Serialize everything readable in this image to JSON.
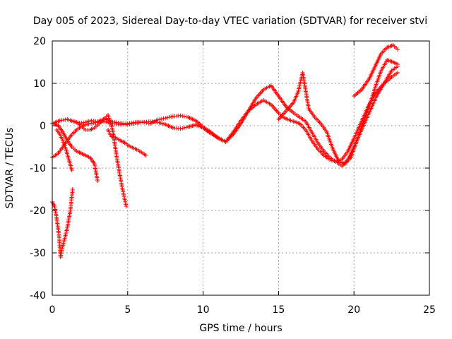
{
  "chart_data": {
    "type": "scatter",
    "title": "Day 005 of 2023, Sidereal Day-to-day VTEC variation (SDTVAR) for receiver stvi",
    "xlabel": "GPS time / hours",
    "ylabel": "SDTVAR / TECUs",
    "xlim": [
      0,
      25
    ],
    "ylim": [
      -40,
      20
    ],
    "x_ticks": [
      "0",
      "5",
      "10",
      "15",
      "20",
      "25"
    ],
    "y_ticks": [
      "20",
      "10",
      "0",
      "-10",
      "-20",
      "-30",
      "-40"
    ],
    "grid": true,
    "marker": "+",
    "color": "#ff0000",
    "series": [
      {
        "x": [
          0.0,
          0.15,
          0.3,
          0.45,
          0.55,
          0.65,
          0.8,
          1.0,
          1.2,
          1.35
        ],
        "y": [
          -18,
          -19,
          -22,
          -26,
          -31,
          -29,
          -27,
          -24,
          -20,
          -15
        ]
      },
      {
        "x": [
          0.0,
          0.5,
          1.0,
          1.4,
          1.8,
          2.2,
          2.6,
          3.0,
          3.5,
          4.0,
          4.5,
          5.0,
          5.5,
          6.0,
          6.5,
          7.0,
          7.5,
          8.0,
          8.5,
          9.0,
          9.5,
          10.0,
          10.5,
          11.0,
          11.5,
          12.0,
          12.5,
          13.0,
          13.5,
          14.0,
          14.5,
          15.0,
          15.3,
          15.6,
          16.0,
          16.4,
          16.8,
          17.2,
          17.6,
          18.0,
          18.4,
          18.8,
          19.2,
          19.6,
          20.0,
          20.5,
          21.0,
          21.5,
          22.0,
          22.5,
          22.9
        ],
        "y": [
          0.5,
          1.2,
          1.5,
          1.0,
          0.6,
          0.8,
          1.2,
          1.0,
          1.6,
          0.9,
          0.6,
          0.5,
          0.8,
          0.9,
          0.5,
          1.4,
          1.8,
          2.2,
          2.4,
          2.0,
          1.2,
          -0.3,
          -1.5,
          -3.0,
          -3.8,
          -1.5,
          1.2,
          3.5,
          5.0,
          6.0,
          5.0,
          3.0,
          2.0,
          1.5,
          1.0,
          0.5,
          -1.0,
          -3.5,
          -5.5,
          -7.0,
          -8.0,
          -8.5,
          -8.0,
          -6.0,
          -3.0,
          1.0,
          5.0,
          8.0,
          10.0,
          11.5,
          12.5
        ]
      },
      {
        "x": [
          0.0,
          0.4,
          0.8,
          1.2,
          1.6,
          2.0,
          2.5,
          3.0,
          3.5,
          4.0,
          4.5,
          5.0,
          5.5,
          6.0,
          6.5,
          7.0,
          7.5,
          8.0,
          8.5,
          9.0,
          9.5,
          10.0,
          10.5,
          11.0,
          11.5,
          12.0,
          12.5,
          13.0,
          13.5,
          14.0,
          14.5,
          15.0,
          15.5,
          16.0,
          16.4,
          16.8,
          17.2,
          17.6,
          18.0,
          18.4,
          18.8,
          19.2,
          19.6,
          20.0,
          20.5,
          21.0,
          21.5,
          22.0,
          22.5,
          22.9
        ],
        "y": [
          -7.5,
          -6.5,
          -4.5,
          -2.5,
          -1.0,
          0.0,
          0.5,
          0.8,
          1.0,
          0.5,
          0.3,
          0.3,
          0.6,
          0.8,
          1.0,
          0.8,
          0.3,
          -0.5,
          -0.7,
          -0.3,
          0.2,
          -0.5,
          -1.8,
          -2.8,
          -3.8,
          -2.0,
          0.5,
          3.5,
          6.5,
          8.5,
          9.5,
          7.0,
          4.5,
          3.0,
          2.0,
          1.0,
          -1.5,
          -4.0,
          -6.0,
          -7.5,
          -8.5,
          -9.5,
          -8.0,
          -5.0,
          -1.0,
          3.0,
          7.0,
          10.0,
          13.0,
          14.0
        ]
      },
      {
        "x": [
          15.0,
          15.5,
          16.0,
          16.3,
          16.6,
          17.0,
          17.4,
          17.8,
          18.2,
          18.6,
          19.0,
          19.4,
          19.8,
          20.2,
          20.6,
          21.0,
          21.4,
          21.8,
          22.2,
          22.6,
          22.9
        ],
        "y": [
          1.5,
          3.5,
          5.5,
          8.0,
          12.5,
          4.0,
          2.0,
          0.5,
          -1.5,
          -5.5,
          -8.5,
          -9.0,
          -7.5,
          -3.5,
          0.5,
          4.5,
          9.0,
          13.0,
          15.5,
          15.0,
          14.5
        ]
      },
      {
        "x": [
          20.0,
          20.5,
          21.0,
          21.4,
          21.8,
          22.2,
          22.6,
          22.9
        ],
        "y": [
          7.0,
          8.5,
          11.0,
          14.0,
          17.0,
          18.5,
          19.0,
          18.0
        ]
      },
      {
        "x": [
          0.1,
          0.4,
          0.7,
          1.0,
          1.3,
          1.6,
          1.9,
          2.2,
          2.5,
          2.8,
          3.0
        ],
        "y": [
          0.5,
          0.0,
          -1.5,
          -3.5,
          -5.0,
          -6.0,
          -6.5,
          -7.0,
          -7.5,
          -9.0,
          -13.0
        ]
      },
      {
        "x": [
          1.3,
          1.6,
          1.9,
          2.2,
          2.5,
          2.8,
          3.1,
          3.4,
          3.7,
          4.0,
          4.3,
          4.6,
          4.9
        ],
        "y": [
          1.2,
          0.8,
          0.0,
          -1.0,
          -1.0,
          -0.5,
          0.5,
          1.5,
          2.5,
          -1.0,
          -8.0,
          -14.0,
          -19.0
        ]
      },
      {
        "x": [
          3.7,
          3.9,
          4.2,
          4.5,
          4.8,
          5.1,
          5.4,
          5.7,
          6.0,
          6.2
        ],
        "y": [
          -1.0,
          -2.5,
          -2.8,
          -3.5,
          -4.0,
          -4.8,
          -5.3,
          -5.8,
          -6.5,
          -7.0
        ]
      },
      {
        "x": [
          0.3,
          0.5,
          0.7,
          0.9,
          1.1,
          1.3
        ],
        "y": [
          -1.0,
          -2.0,
          -3.5,
          -5.5,
          -8.0,
          -10.5
        ]
      }
    ]
  }
}
